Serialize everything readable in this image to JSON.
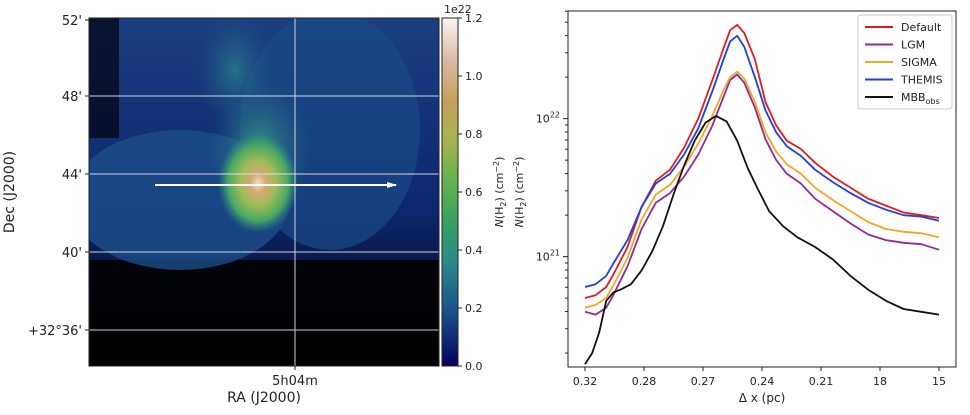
{
  "chart_data": [
    {
      "type": "heatmap",
      "xlabel": "RA (J2000)",
      "ylabel": "Dec (J2000)",
      "x_ticks": [
        "5h04m"
      ],
      "y_ticks": [
        "52'",
        "48'",
        "44'",
        "40'",
        "+32°36'"
      ],
      "colorbar": {
        "label": "N(H₂) (cm⁻²)",
        "multiplier": "1e22",
        "ticks": [
          0.0,
          0.2,
          0.4,
          0.6,
          0.8,
          1.0,
          1.2
        ],
        "tick_labels": [
          "0.0",
          "0.2",
          "0.4",
          "0.6",
          "0.8",
          "1.0",
          "1.2"
        ],
        "range": [
          0.0,
          1.2
        ],
        "colormap": "gist_earth"
      },
      "grid": true,
      "grid_color": "#e6e6e6",
      "annotations": [
        {
          "type": "arrow",
          "direction": "right",
          "color": "#ffffff"
        }
      ]
    },
    {
      "type": "line",
      "xlabel": "Δ x (pc)",
      "ylabel": "N(H₂) (cm⁻²)",
      "x_tick_labels": [
        "0.32",
        "0.28",
        "0.27",
        "0.24",
        "0.21",
        "18",
        "15"
      ],
      "y_scale": "log",
      "y_ticks": [
        "10²²",
        "10²¹"
      ],
      "legend_position": "top-right",
      "grid": false,
      "x_range": [
        0,
        1
      ],
      "y_range_log10": [
        20.2,
        22.78
      ],
      "series": [
        {
          "name": "Default",
          "color": "#e41a1c",
          "x": [
            0.0,
            0.03,
            0.06,
            0.08,
            0.12,
            0.16,
            0.2,
            0.24,
            0.28,
            0.32,
            0.36,
            0.39,
            0.41,
            0.43,
            0.45,
            0.48,
            0.51,
            0.54,
            0.57,
            0.61,
            0.65,
            0.7,
            0.75,
            0.8,
            0.85,
            0.9,
            0.95,
            1.0
          ],
          "y_log10": [
            20.7,
            20.72,
            20.78,
            20.87,
            21.07,
            21.36,
            21.55,
            21.63,
            21.79,
            22.0,
            22.28,
            22.5,
            22.64,
            22.68,
            22.62,
            22.43,
            22.12,
            21.95,
            21.84,
            21.78,
            21.68,
            21.58,
            21.5,
            21.42,
            21.37,
            21.32,
            21.3,
            21.28
          ]
        },
        {
          "name": "LGM",
          "color": "#8e2b9e",
          "x": [
            0.0,
            0.03,
            0.06,
            0.08,
            0.12,
            0.16,
            0.2,
            0.24,
            0.28,
            0.32,
            0.36,
            0.39,
            0.41,
            0.43,
            0.45,
            0.48,
            0.51,
            0.54,
            0.57,
            0.61,
            0.65,
            0.7,
            0.75,
            0.8,
            0.85,
            0.9,
            0.95,
            1.0
          ],
          "y_log10": [
            20.6,
            20.58,
            20.63,
            20.72,
            20.93,
            21.2,
            21.39,
            21.46,
            21.58,
            21.74,
            21.95,
            22.15,
            22.28,
            22.32,
            22.26,
            22.08,
            21.85,
            21.7,
            21.6,
            21.53,
            21.42,
            21.33,
            21.24,
            21.16,
            21.12,
            21.1,
            21.09,
            21.05
          ]
        },
        {
          "name": "SIGMA",
          "color": "#f6a623",
          "x": [
            0.0,
            0.03,
            0.06,
            0.08,
            0.12,
            0.16,
            0.2,
            0.24,
            0.28,
            0.32,
            0.36,
            0.39,
            0.41,
            0.43,
            0.45,
            0.48,
            0.51,
            0.54,
            0.57,
            0.61,
            0.65,
            0.7,
            0.75,
            0.8,
            0.85,
            0.9,
            0.95,
            1.0
          ],
          "y_log10": [
            20.63,
            20.65,
            20.7,
            20.79,
            20.99,
            21.27,
            21.45,
            21.52,
            21.65,
            21.82,
            22.02,
            22.2,
            22.3,
            22.34,
            22.29,
            22.12,
            21.9,
            21.76,
            21.67,
            21.6,
            21.5,
            21.41,
            21.33,
            21.25,
            21.2,
            21.18,
            21.17,
            21.14
          ]
        },
        {
          "name": "THEMIS",
          "color": "#1f3fe0",
          "x": [
            0.0,
            0.03,
            0.06,
            0.08,
            0.12,
            0.16,
            0.2,
            0.24,
            0.28,
            0.32,
            0.36,
            0.39,
            0.41,
            0.43,
            0.45,
            0.48,
            0.51,
            0.54,
            0.57,
            0.61,
            0.65,
            0.7,
            0.75,
            0.8,
            0.85,
            0.9,
            0.95,
            1.0
          ],
          "y_log10": [
            20.78,
            20.8,
            20.86,
            20.95,
            21.12,
            21.36,
            21.53,
            21.6,
            21.74,
            21.93,
            22.2,
            22.42,
            22.56,
            22.6,
            22.52,
            22.3,
            22.06,
            21.9,
            21.8,
            21.73,
            21.63,
            21.54,
            21.46,
            21.39,
            21.34,
            21.3,
            21.29,
            21.26
          ]
        },
        {
          "name": "MBB_obs",
          "label_main": "MBB",
          "label_sub": "obs",
          "color": "#111111",
          "x": [
            0.0,
            0.02,
            0.04,
            0.06,
            0.08,
            0.1,
            0.13,
            0.16,
            0.19,
            0.22,
            0.25,
            0.28,
            0.31,
            0.34,
            0.37,
            0.4,
            0.43,
            0.46,
            0.49,
            0.52,
            0.56,
            0.6,
            0.65,
            0.7,
            0.75,
            0.8,
            0.85,
            0.9,
            0.95,
            1.0
          ],
          "y_log10": [
            20.22,
            20.3,
            20.45,
            20.68,
            20.74,
            20.76,
            20.8,
            20.9,
            21.04,
            21.22,
            21.45,
            21.66,
            21.84,
            21.97,
            22.02,
            21.98,
            21.84,
            21.64,
            21.48,
            21.33,
            21.22,
            21.14,
            21.07,
            20.98,
            20.86,
            20.76,
            20.68,
            20.62,
            20.6,
            20.58
          ]
        }
      ]
    }
  ]
}
